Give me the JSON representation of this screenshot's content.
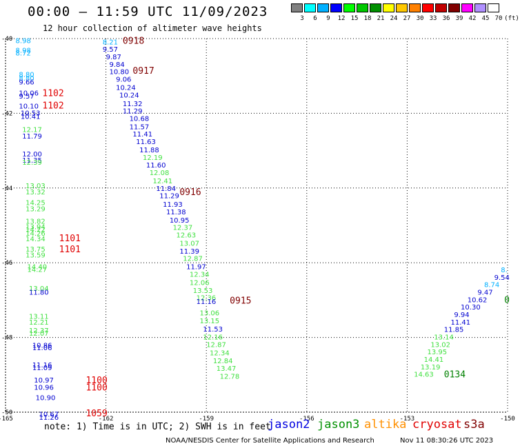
{
  "header": {
    "title": "00:00 – 11:59 UTC 11/09/2023",
    "subtitle": "12 hour collection of altimeter wave heights"
  },
  "color_scale": {
    "labels": [
      "3",
      "6",
      "9",
      "12",
      "15",
      "18",
      "21",
      "24",
      "27",
      "30",
      "33",
      "36",
      "39",
      "42",
      "45",
      "70",
      "(ft)"
    ],
    "colors": [
      "#808080",
      "#00ffff",
      "#00b0ff",
      "#0000ff",
      "#00ff00",
      "#00c800",
      "#009000",
      "#ffff00",
      "#ffc800",
      "#ff8000",
      "#ff0000",
      "#c00000",
      "#800000",
      "#ff00ff",
      "#b090ff",
      "#ffffff"
    ]
  },
  "footer": {
    "note": "note: 1) Time is in UTC; 2) SWH is in feet",
    "legend": [
      {
        "name": "jason2",
        "color": "#0000e0"
      },
      {
        "name": "jason3",
        "color": "#009000"
      },
      {
        "name": "altika",
        "color": "#ff9000"
      },
      {
        "name": "cryosat",
        "color": "#e00000"
      },
      {
        "name": "s3a",
        "color": "#800000"
      }
    ],
    "credit": "NOAA/NESDIS Center for Satellite Applications and Research",
    "stamp": "Nov 11 08:30:26 UTC 2023"
  },
  "chart_data": {
    "type": "scatter",
    "title": "00:00 – 11:59 UTC 11/09/2023",
    "subtitle": "12 hour collection of altimeter wave heights",
    "xlim": [
      -165,
      -150
    ],
    "ylim": [
      -50,
      -40
    ],
    "x_ticks": [
      "-165",
      "-162",
      "-159",
      "-156",
      "-153",
      "-150"
    ],
    "y_ticks": [
      "-40",
      "-42",
      "-44",
      "-46",
      "-48",
      "-50"
    ],
    "grid": true,
    "units": "ft",
    "points": [
      {
        "lon": -164.7,
        "lat": -40.05,
        "text": "8.98",
        "color": "#00b0ff"
      },
      {
        "lon": -164.7,
        "lat": -40.3,
        "text": "8.98",
        "color": "#00b0ff"
      },
      {
        "lon": -164.7,
        "lat": -40.38,
        "text": "8.72",
        "color": "#00b0ff"
      },
      {
        "lon": -164.6,
        "lat": -40.95,
        "text": "8.80",
        "color": "#00b0ff"
      },
      {
        "lon": -164.6,
        "lat": -41.05,
        "text": "8.80",
        "color": "#00b0ff"
      },
      {
        "lon": -164.6,
        "lat": -41.15,
        "text": "9.66",
        "color": "#0000d0"
      },
      {
        "lon": -164.6,
        "lat": -41.45,
        "text": "10.06",
        "color": "#0000d0"
      },
      {
        "lon": -164.6,
        "lat": -41.53,
        "text": "9.57",
        "color": "#0000d0"
      },
      {
        "lon": -164.6,
        "lat": -41.8,
        "text": "10.10",
        "color": "#0000d0"
      },
      {
        "lon": -164.55,
        "lat": -41.98,
        "text": "10.53",
        "color": "#0000d0"
      },
      {
        "lon": -164.55,
        "lat": -42.08,
        "text": "10.41",
        "color": "#0000d0"
      },
      {
        "lon": -164.5,
        "lat": -42.43,
        "text": "12.17",
        "color": "#40e040"
      },
      {
        "lon": -164.5,
        "lat": -42.6,
        "text": "11.79",
        "color": "#0000d0"
      },
      {
        "lon": -164.5,
        "lat": -43.08,
        "text": "12.00",
        "color": "#0000d0"
      },
      {
        "lon": -164.5,
        "lat": -43.25,
        "text": "11.35",
        "color": "#0000d0"
      },
      {
        "lon": -164.5,
        "lat": -43.3,
        "text": "12.39",
        "color": "#40e040"
      },
      {
        "lon": -164.4,
        "lat": -43.93,
        "text": "13.03",
        "color": "#40e040"
      },
      {
        "lon": -164.4,
        "lat": -44.1,
        "text": "13.32",
        "color": "#40e040"
      },
      {
        "lon": -164.4,
        "lat": -44.38,
        "text": "14.25",
        "color": "#40e040"
      },
      {
        "lon": -164.4,
        "lat": -44.55,
        "text": "13.29",
        "color": "#40e040"
      },
      {
        "lon": -164.4,
        "lat": -44.88,
        "text": "13.82",
        "color": "#40e040"
      },
      {
        "lon": -164.4,
        "lat": -45.03,
        "text": "13.94",
        "color": "#40e040"
      },
      {
        "lon": -164.4,
        "lat": -45.1,
        "text": "14.22",
        "color": "#40e040"
      },
      {
        "lon": -164.4,
        "lat": -45.2,
        "text": "14.26",
        "color": "#40e040"
      },
      {
        "lon": -164.4,
        "lat": -45.35,
        "text": "14.34",
        "color": "#40e040"
      },
      {
        "lon": -164.4,
        "lat": -45.63,
        "text": "13.75",
        "color": "#40e040"
      },
      {
        "lon": -164.4,
        "lat": -45.78,
        "text": "13.59",
        "color": "#40e040"
      },
      {
        "lon": -164.35,
        "lat": -46.1,
        "text": "14.40",
        "color": "#40e040"
      },
      {
        "lon": -164.35,
        "lat": -46.17,
        "text": "14.27",
        "color": "#40e040"
      },
      {
        "lon": -164.3,
        "lat": -46.68,
        "text": "13.04",
        "color": "#40e040"
      },
      {
        "lon": -164.3,
        "lat": -46.78,
        "text": "11.80",
        "color": "#0000d0"
      },
      {
        "lon": -164.3,
        "lat": -47.43,
        "text": "13.11",
        "color": "#40e040"
      },
      {
        "lon": -164.3,
        "lat": -47.58,
        "text": "12.21",
        "color": "#40e040"
      },
      {
        "lon": -164.3,
        "lat": -47.8,
        "text": "12.37",
        "color": "#40e040"
      },
      {
        "lon": -164.3,
        "lat": -47.88,
        "text": "12.07",
        "color": "#40e040"
      },
      {
        "lon": -164.2,
        "lat": -48.2,
        "text": "10.86",
        "color": "#0000d0"
      },
      {
        "lon": -164.2,
        "lat": -48.27,
        "text": "11.06",
        "color": "#0000d0"
      },
      {
        "lon": -164.2,
        "lat": -48.73,
        "text": "11.16",
        "color": "#0000d0"
      },
      {
        "lon": -164.2,
        "lat": -48.8,
        "text": "11.09",
        "color": "#0000d0"
      },
      {
        "lon": -164.15,
        "lat": -49.13,
        "text": "10.97",
        "color": "#0000d0"
      },
      {
        "lon": -164.15,
        "lat": -49.33,
        "text": "10.96",
        "color": "#0000d0"
      },
      {
        "lon": -164.1,
        "lat": -49.6,
        "text": "10.90",
        "color": "#0000d0"
      },
      {
        "lon": -164.0,
        "lat": -50.05,
        "text": "10.67",
        "color": "#0000d0"
      },
      {
        "lon": -164.0,
        "lat": -50.13,
        "text": "11.26",
        "color": "#0000d0"
      },
      {
        "lon": -162.1,
        "lat": -40.08,
        "text": "8.21",
        "color": "#00b0ff"
      },
      {
        "lon": -162.1,
        "lat": -40.28,
        "text": "9.57",
        "color": "#0000d0"
      },
      {
        "lon": -162.0,
        "lat": -40.48,
        "text": "9.87",
        "color": "#0000d0"
      },
      {
        "lon": -161.9,
        "lat": -40.68,
        "text": "9.84",
        "color": "#0000d0"
      },
      {
        "lon": -161.9,
        "lat": -40.88,
        "text": "10.80",
        "color": "#0000d0"
      },
      {
        "lon": -161.7,
        "lat": -41.08,
        "text": "9.06",
        "color": "#0000d0"
      },
      {
        "lon": -161.7,
        "lat": -41.3,
        "text": "10.24",
        "color": "#0000d0"
      },
      {
        "lon": -161.6,
        "lat": -41.5,
        "text": "10.24",
        "color": "#0000d0"
      },
      {
        "lon": -161.5,
        "lat": -41.73,
        "text": "11.32",
        "color": "#0000d0"
      },
      {
        "lon": -161.5,
        "lat": -41.93,
        "text": "11.29",
        "color": "#0000d0"
      },
      {
        "lon": -161.3,
        "lat": -42.13,
        "text": "10.68",
        "color": "#0000d0"
      },
      {
        "lon": -161.3,
        "lat": -42.35,
        "text": "11.57",
        "color": "#0000d0"
      },
      {
        "lon": -161.2,
        "lat": -42.55,
        "text": "11.41",
        "color": "#0000d0"
      },
      {
        "lon": -161.1,
        "lat": -42.75,
        "text": "11.63",
        "color": "#0000d0"
      },
      {
        "lon": -161.0,
        "lat": -42.97,
        "text": "11.88",
        "color": "#0000d0"
      },
      {
        "lon": -160.9,
        "lat": -43.17,
        "text": "12.19",
        "color": "#40e040"
      },
      {
        "lon": -160.8,
        "lat": -43.38,
        "text": "11.60",
        "color": "#0000d0"
      },
      {
        "lon": -160.7,
        "lat": -43.58,
        "text": "12.08",
        "color": "#40e040"
      },
      {
        "lon": -160.6,
        "lat": -43.8,
        "text": "12.41",
        "color": "#40e040"
      },
      {
        "lon": -160.5,
        "lat": -44.0,
        "text": "11.84",
        "color": "#0000d0"
      },
      {
        "lon": -160.4,
        "lat": -44.2,
        "text": "11.29",
        "color": "#0000d0"
      },
      {
        "lon": -160.3,
        "lat": -44.43,
        "text": "11.93",
        "color": "#0000d0"
      },
      {
        "lon": -160.2,
        "lat": -44.63,
        "text": "11.38",
        "color": "#0000d0"
      },
      {
        "lon": -160.1,
        "lat": -44.85,
        "text": "10.95",
        "color": "#0000d0"
      },
      {
        "lon": -160.0,
        "lat": -45.05,
        "text": "12.37",
        "color": "#40e040"
      },
      {
        "lon": -159.9,
        "lat": -45.25,
        "text": "12.63",
        "color": "#40e040"
      },
      {
        "lon": -159.8,
        "lat": -45.47,
        "text": "13.07",
        "color": "#40e040"
      },
      {
        "lon": -159.8,
        "lat": -45.68,
        "text": "11.39",
        "color": "#0000d0"
      },
      {
        "lon": -159.7,
        "lat": -45.88,
        "text": "12.87",
        "color": "#40e040"
      },
      {
        "lon": -159.6,
        "lat": -46.1,
        "text": "11.97",
        "color": "#0000d0"
      },
      {
        "lon": -159.5,
        "lat": -46.3,
        "text": "12.34",
        "color": "#40e040"
      },
      {
        "lon": -159.5,
        "lat": -46.52,
        "text": "12.06",
        "color": "#40e040"
      },
      {
        "lon": -159.4,
        "lat": -46.73,
        "text": "13.53",
        "color": "#40e040"
      },
      {
        "lon": -159.3,
        "lat": -46.93,
        "text": "12.36",
        "color": "#40e040"
      },
      {
        "lon": -159.3,
        "lat": -47.03,
        "text": "11.16",
        "color": "#0000d0"
      },
      {
        "lon": -159.2,
        "lat": -47.33,
        "text": "13.06",
        "color": "#40e040"
      },
      {
        "lon": -159.2,
        "lat": -47.55,
        "text": "13.15",
        "color": "#40e040"
      },
      {
        "lon": -159.1,
        "lat": -47.77,
        "text": "11.53",
        "color": "#0000d0"
      },
      {
        "lon": -159.1,
        "lat": -47.98,
        "text": "12.16",
        "color": "#40e040"
      },
      {
        "lon": -159.0,
        "lat": -48.18,
        "text": "12.87",
        "color": "#40e040"
      },
      {
        "lon": -158.9,
        "lat": -48.4,
        "text": "12.34",
        "color": "#40e040"
      },
      {
        "lon": -158.8,
        "lat": -48.62,
        "text": "12.84",
        "color": "#40e040"
      },
      {
        "lon": -158.7,
        "lat": -48.82,
        "text": "13.47",
        "color": "#40e040"
      },
      {
        "lon": -158.6,
        "lat": -49.03,
        "text": "12.78",
        "color": "#40e040"
      },
      {
        "lon": -152.8,
        "lat": -48.98,
        "text": "14.63",
        "color": "#40e040"
      },
      {
        "lon": -152.6,
        "lat": -48.78,
        "text": "13.19",
        "color": "#40e040"
      },
      {
        "lon": -152.5,
        "lat": -48.58,
        "text": "14.41",
        "color": "#40e040"
      },
      {
        "lon": -152.4,
        "lat": -48.38,
        "text": "13.95",
        "color": "#40e040"
      },
      {
        "lon": -152.3,
        "lat": -48.18,
        "text": "13.02",
        "color": "#40e040"
      },
      {
        "lon": -152.2,
        "lat": -47.98,
        "text": "13.14",
        "color": "#40e040"
      },
      {
        "lon": -151.9,
        "lat": -47.78,
        "text": "11.85",
        "color": "#0000d0"
      },
      {
        "lon": -151.7,
        "lat": -47.58,
        "text": "11.41",
        "color": "#0000d0"
      },
      {
        "lon": -151.6,
        "lat": -47.38,
        "text": "9.94",
        "color": "#0000d0"
      },
      {
        "lon": -151.4,
        "lat": -47.18,
        "text": "10.30",
        "color": "#0000d0"
      },
      {
        "lon": -151.2,
        "lat": -46.98,
        "text": "10.62",
        "color": "#0000d0"
      },
      {
        "lon": -150.9,
        "lat": -46.78,
        "text": "9.47",
        "color": "#0000d0"
      },
      {
        "lon": -150.7,
        "lat": -46.58,
        "text": "8.74",
        "color": "#00b0ff"
      },
      {
        "lon": -150.4,
        "lat": -46.38,
        "text": "9.54",
        "color": "#0000d0"
      },
      {
        "lon": -150.2,
        "lat": -46.18,
        "text": "8.",
        "color": "#00b0ff"
      }
    ],
    "time_labels": [
      {
        "lon": -161.5,
        "lat": -40.05,
        "text": "0918",
        "color": "#800000"
      },
      {
        "lon": -161.2,
        "lat": -40.85,
        "text": "0917",
        "color": "#800000"
      },
      {
        "lon": -159.8,
        "lat": -44.1,
        "text": "0916",
        "color": "#800000"
      },
      {
        "lon": -158.3,
        "lat": -47.0,
        "text": "0915",
        "color": "#800000"
      },
      {
        "lon": -163.9,
        "lat": -41.45,
        "text": "1102",
        "color": "#e00000"
      },
      {
        "lon": -163.9,
        "lat": -41.78,
        "text": "1102",
        "color": "#e00000"
      },
      {
        "lon": -163.4,
        "lat": -45.33,
        "text": "1101",
        "color": "#e00000"
      },
      {
        "lon": -163.4,
        "lat": -45.63,
        "text": "1101",
        "color": "#e00000"
      },
      {
        "lon": -162.6,
        "lat": -49.13,
        "text": "1100",
        "color": "#e00000"
      },
      {
        "lon": -162.6,
        "lat": -49.33,
        "text": "1100",
        "color": "#e00000"
      },
      {
        "lon": -162.6,
        "lat": -50.02,
        "text": "1059",
        "color": "#e00000"
      },
      {
        "lon": -151.9,
        "lat": -48.98,
        "text": "0134",
        "color": "#008000"
      },
      {
        "lon": -150.1,
        "lat": -46.98,
        "text": "0",
        "color": "#008000"
      }
    ]
  }
}
